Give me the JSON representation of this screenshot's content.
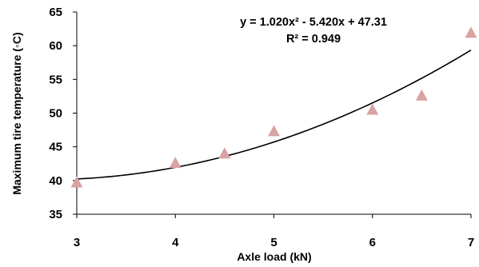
{
  "chart_data": {
    "type": "scatter",
    "title": "",
    "xlabel": "Axle load (kN)",
    "ylabel": "Maximum tire temperature (◦C)",
    "xlim": [
      3,
      7
    ],
    "ylim": [
      35,
      65
    ],
    "x_ticks": [
      "3",
      "4",
      "5",
      "6",
      "7"
    ],
    "y_ticks": [
      "35",
      "40",
      "45",
      "50",
      "55",
      "60",
      "65"
    ],
    "grid": false,
    "legend": "none",
    "series": [
      {
        "marker": "triangle",
        "color": "#d9a3a3",
        "points": [
          {
            "x": 3.0,
            "y": 39.6
          },
          {
            "x": 4.0,
            "y": 42.5
          },
          {
            "x": 4.5,
            "y": 43.9
          },
          {
            "x": 5.0,
            "y": 47.2
          },
          {
            "x": 6.0,
            "y": 50.4
          },
          {
            "x": 6.5,
            "y": 52.5
          },
          {
            "x": 7.0,
            "y": 61.8
          }
        ]
      }
    ],
    "trendline": {
      "type": "polynomial",
      "coefficients": [
        1.02,
        -5.42,
        47.31
      ],
      "color": "#000000"
    },
    "annotations": {
      "equation": "y = 1.020x² - 5.420x + 47.31",
      "r_squared": "R² = 0.949"
    }
  }
}
